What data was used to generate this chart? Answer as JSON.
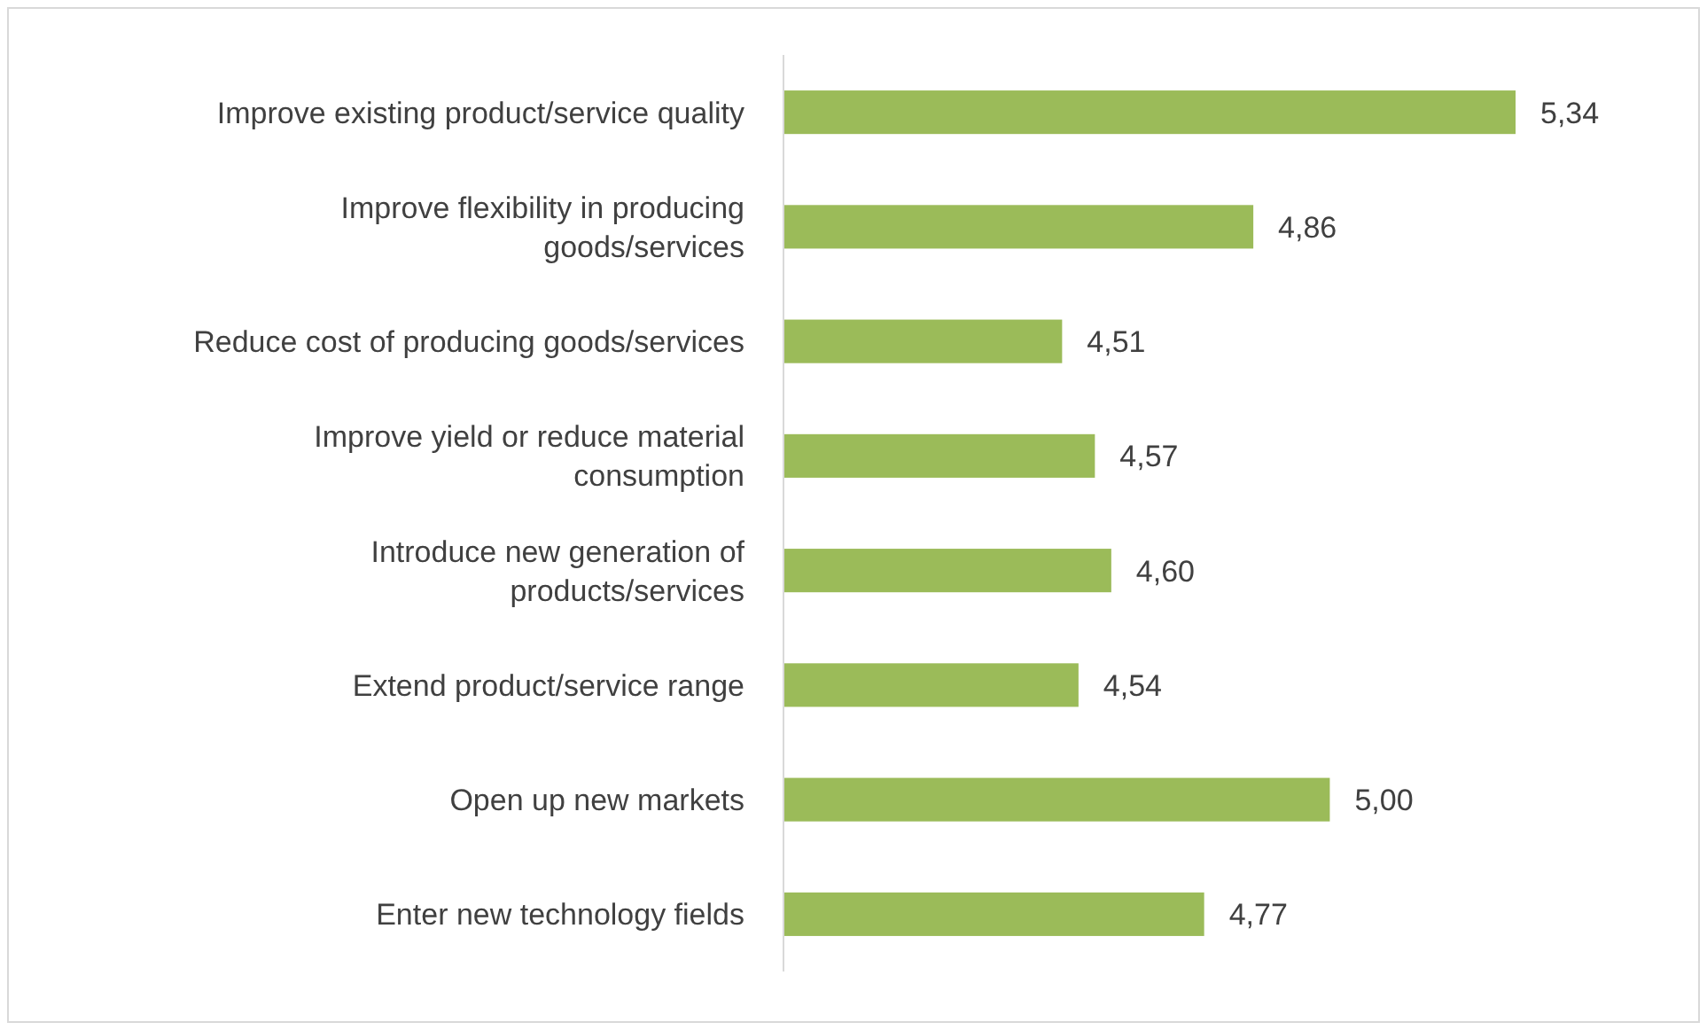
{
  "chart_data": {
    "type": "bar",
    "orientation": "horizontal",
    "categories": [
      "Improve existing product/service quality",
      "Improve flexibility in producing goods/services",
      "Reduce cost of producing goods/services",
      "Improve yield or reduce material consumption",
      "Introduce new generation of products/services",
      "Extend product/service range",
      "Open up new markets",
      "Enter new technology fields"
    ],
    "values": [
      5.34,
      4.86,
      4.51,
      4.57,
      4.6,
      4.54,
      5.0,
      4.77
    ],
    "value_labels": [
      "5,34",
      "4,86",
      "4,51",
      "4,57",
      "4,60",
      "4,54",
      "5,00",
      "4,77"
    ],
    "color": "#9bbb59",
    "xlim": [
      4,
      5.34
    ],
    "tick_labels": "y"
  }
}
